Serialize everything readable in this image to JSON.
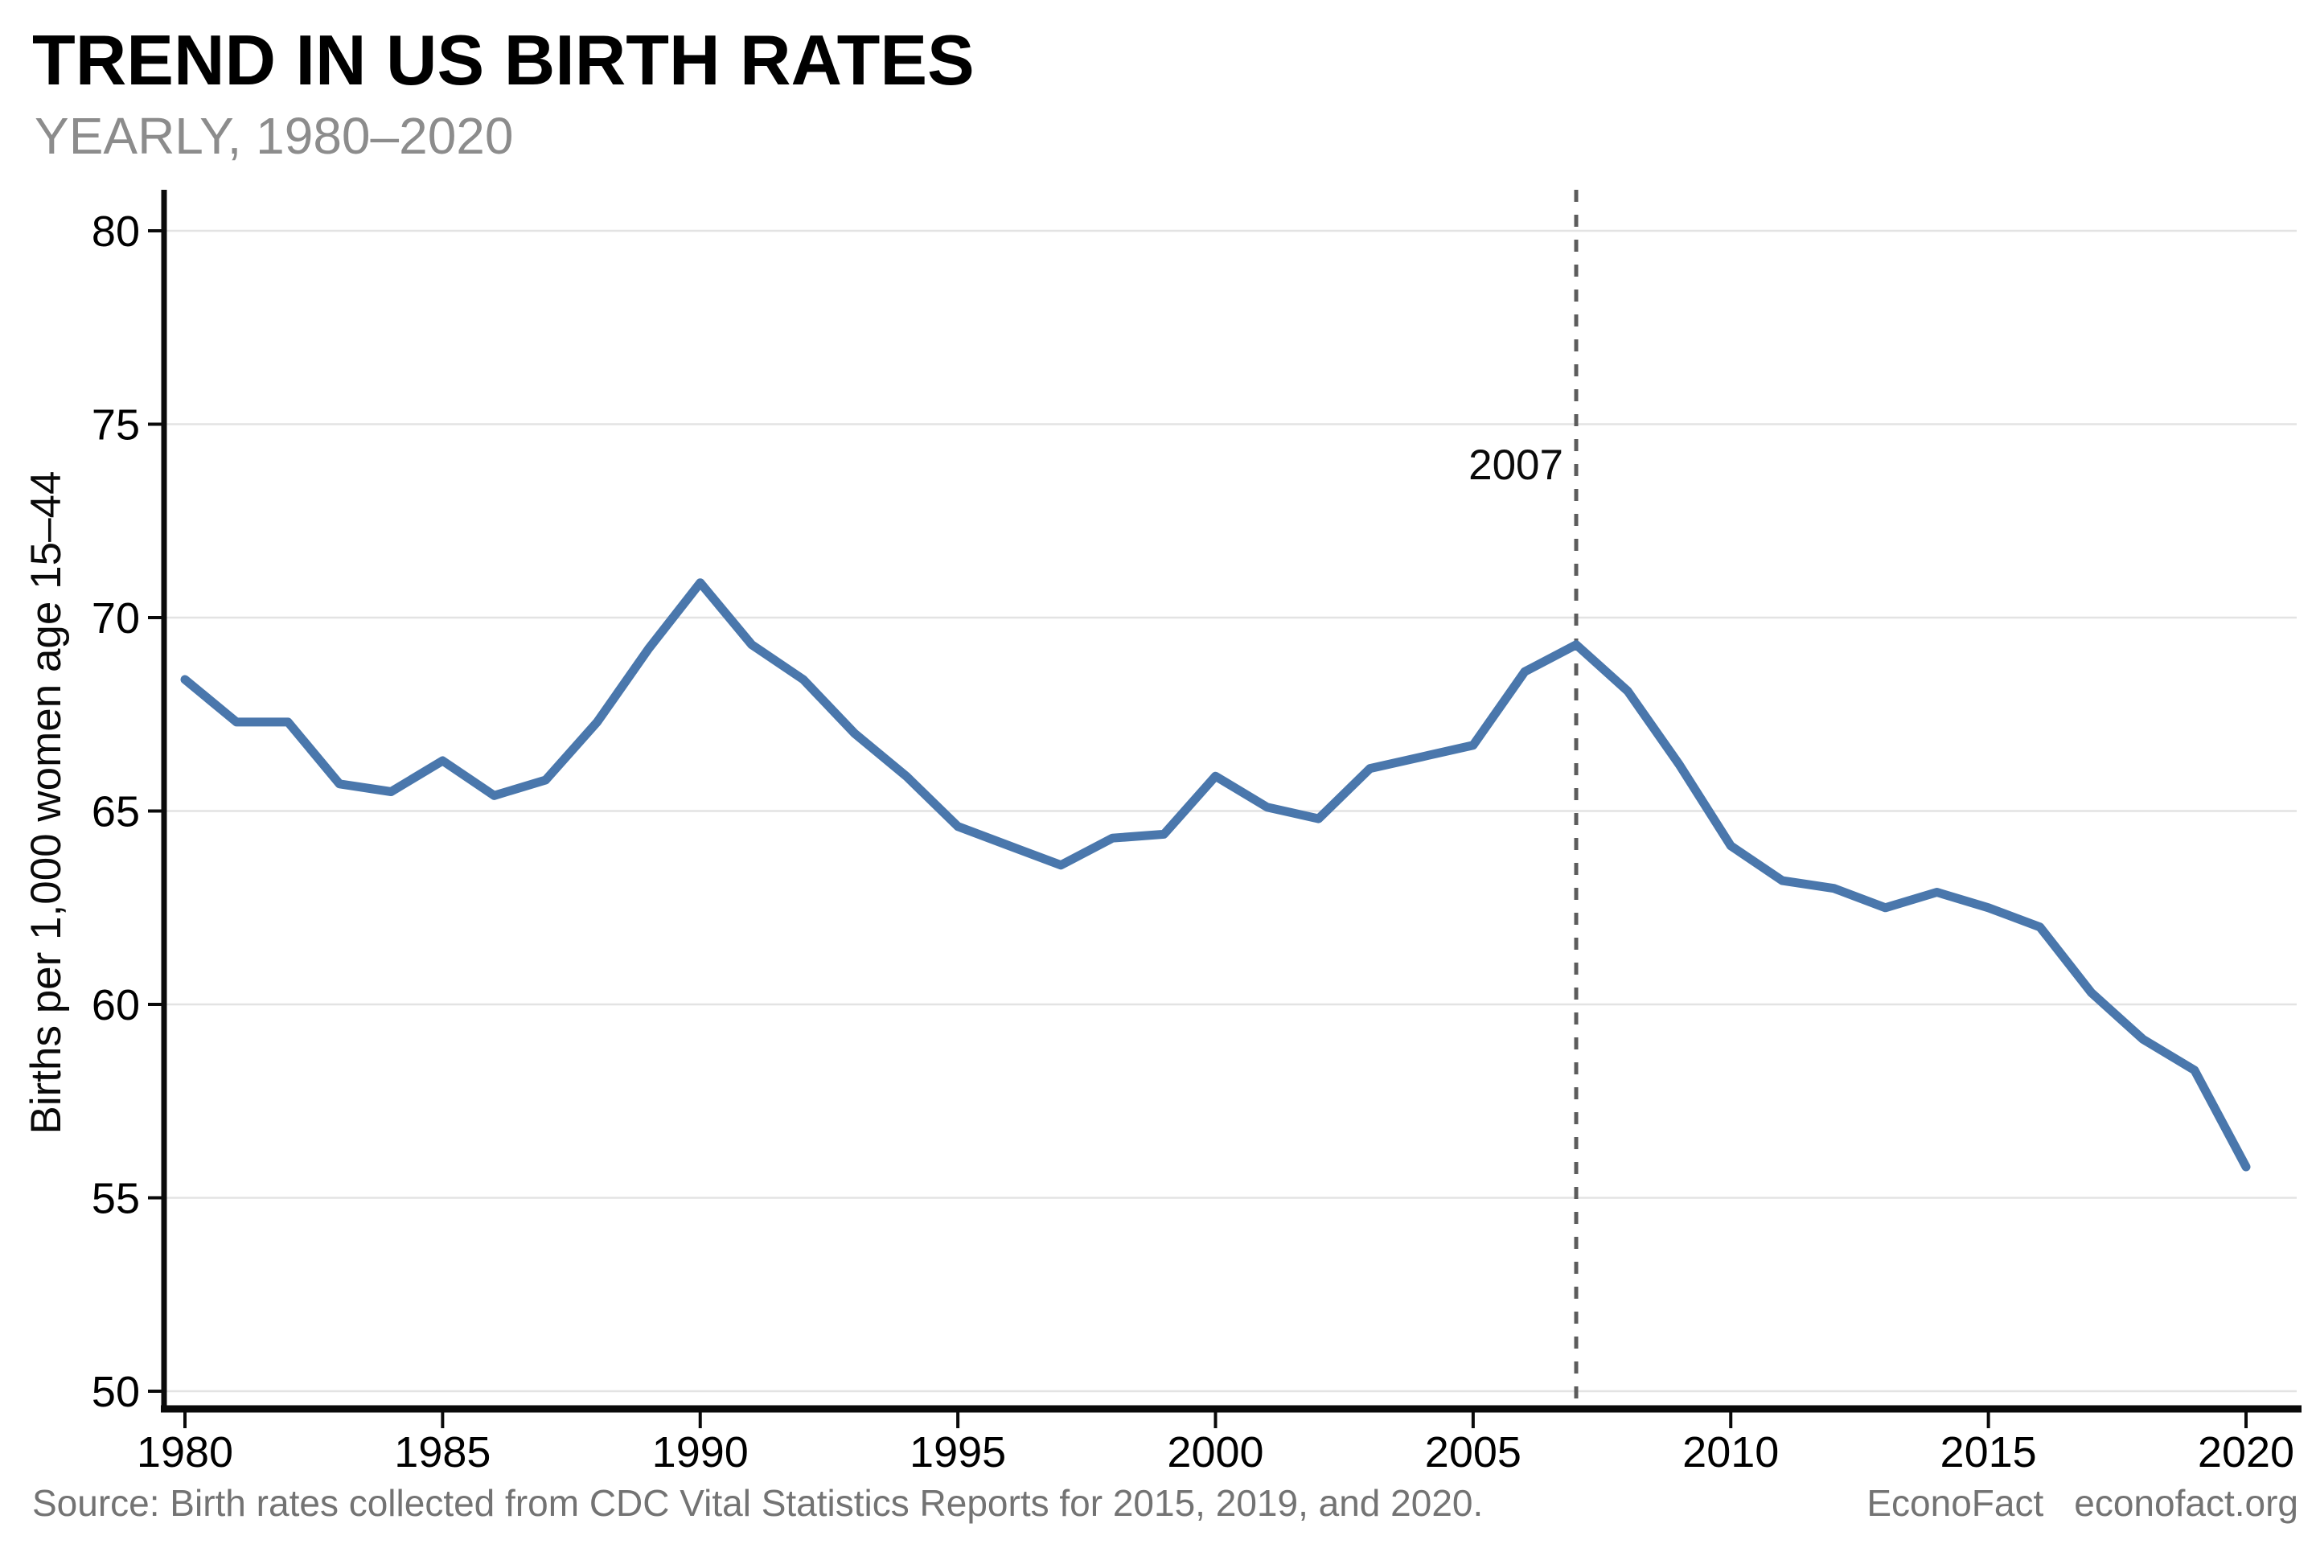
{
  "header": {
    "title": "TREND IN US BIRTH RATES",
    "subtitle": "YEARLY, 1980–2020"
  },
  "chart_data": {
    "type": "line",
    "title": "TREND IN US BIRTH RATES",
    "subtitle": "YEARLY, 1980–2020",
    "xlabel": "",
    "ylabel": "Births per 1,000 women age 15–44",
    "xlim": [
      1980,
      2020
    ],
    "ylim": [
      50,
      80
    ],
    "xticks": [
      "1980",
      "1985",
      "1990",
      "1995",
      "2000",
      "2005",
      "2010",
      "2015",
      "2020"
    ],
    "yticks": [
      "50",
      "55",
      "60",
      "65",
      "70",
      "75",
      "80"
    ],
    "grid": "horizontal",
    "legend": "none",
    "line_color": "#4a77ac",
    "grid_color": "#e3e3e3",
    "axis_color": "#0a0a0a",
    "annotation": {
      "label": "2007",
      "x": 2007,
      "style": "dashed-vertical-line"
    },
    "x": [
      1980,
      1981,
      1982,
      1983,
      1984,
      1985,
      1986,
      1987,
      1988,
      1989,
      1990,
      1991,
      1992,
      1993,
      1994,
      1995,
      1996,
      1997,
      1998,
      1999,
      2000,
      2001,
      2002,
      2003,
      2004,
      2005,
      2006,
      2007,
      2008,
      2009,
      2010,
      2011,
      2012,
      2013,
      2014,
      2015,
      2016,
      2017,
      2018,
      2019,
      2020
    ],
    "series": [
      {
        "name": "Births per 1,000 women age 15-44",
        "values": [
          68.4,
          67.3,
          67.3,
          65.7,
          65.5,
          66.3,
          65.4,
          65.8,
          67.3,
          69.2,
          70.9,
          69.3,
          68.4,
          67.0,
          65.9,
          64.6,
          64.1,
          63.6,
          64.3,
          64.4,
          65.9,
          65.1,
          64.8,
          66.1,
          66.4,
          66.7,
          68.6,
          69.3,
          68.1,
          66.2,
          64.1,
          63.2,
          63.0,
          62.5,
          62.9,
          62.5,
          62.0,
          60.3,
          59.1,
          58.3,
          55.8
        ]
      }
    ]
  },
  "footer": {
    "source": "Source: Birth rates collected from CDC Vital Statistics Reports for 2015, 2019, and 2020.",
    "brand": "EconoFact",
    "site": "econofact.org"
  }
}
